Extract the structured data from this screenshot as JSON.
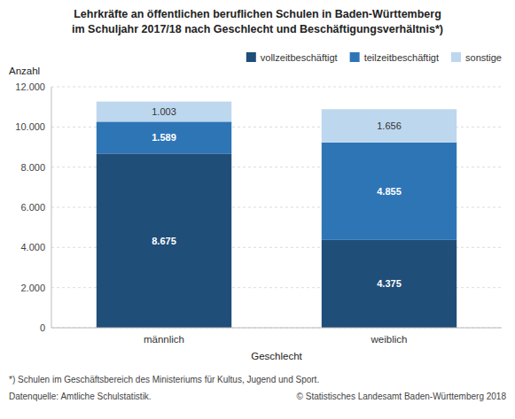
{
  "chart_data": {
    "type": "bar",
    "title": "Lehrkräfte an öffentlichen beruflichen Schulen in Baden-Württemberg",
    "subtitle": "im Schuljahr 2017/18 nach Geschlecht und Beschäftigungsverhältnis*)",
    "x_label": "Geschlecht",
    "y_label": "Anzahl",
    "categories": [
      "männlich",
      "weiblich"
    ],
    "series": [
      {
        "name": "vollzeitbeschäftigt",
        "color": "#1f4e79",
        "values": [
          8675,
          4375
        ],
        "value_labels": [
          "8.675",
          "4.375"
        ]
      },
      {
        "name": "teilzeitbeschäftigt",
        "color": "#2e75b6",
        "values": [
          1589,
          4855
        ],
        "value_labels": [
          "1.589",
          "4.855"
        ]
      },
      {
        "name": "sonstige",
        "color": "#bdd7ee",
        "values": [
          1003,
          1656
        ],
        "value_labels": [
          "1.003",
          "1.656"
        ]
      }
    ],
    "stacked": true,
    "data_labels": true,
    "ylim": [
      0,
      12000
    ],
    "yticks": [
      0,
      {
        "value": 2000,
        "label": "2.000"
      },
      {
        "value": 4000,
        "label": "4.000"
      },
      {
        "value": 6000,
        "label": "6.000"
      },
      {
        "value": 8000,
        "label": "8.000"
      },
      {
        "value": 10000,
        "label": "10.000"
      },
      {
        "value": 12000,
        "label": "12.000"
      }
    ],
    "grid": true,
    "legend": "upper right",
    "annotations": [
      "*) Schulen im Geschäftsbereich des Ministeriums für Kultus, Jugend und Sport.",
      "Datenquelle: Amtliche Schulstatistik.",
      "© Statistisches Landesamt Baden-Württemberg 2018"
    ]
  }
}
